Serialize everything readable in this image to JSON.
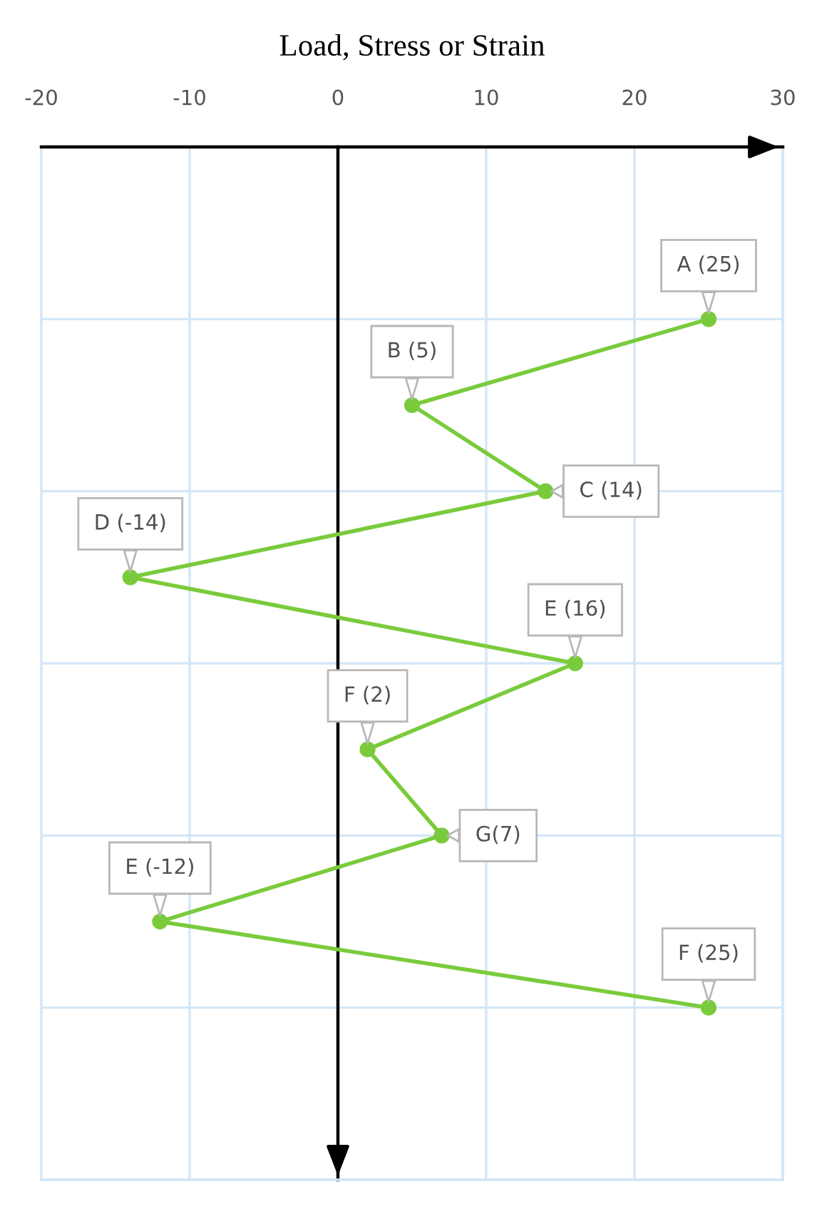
{
  "chart_data": {
    "type": "line",
    "orientation": "horizontal",
    "xlabel": "Load, Stress or Strain",
    "categories": [
      null,
      null,
      null,
      null,
      null,
      null,
      null,
      null,
      null
    ],
    "series": [
      {
        "color": "#7acb3c",
        "values": [
          25,
          5,
          14,
          -14,
          16,
          2,
          7,
          -12,
          25
        ],
        "value_labels": [
          "A (25)",
          "B (5)",
          "C (14)",
          "D (-14)",
          "E (16)",
          "F (2)",
          "G(7)",
          "E (-12)",
          "F (25)"
        ]
      }
    ],
    "xlim": [
      -20,
      30
    ],
    "xticks": [
      -20,
      -10,
      0,
      10,
      20,
      30
    ],
    "grid": true,
    "tick_labels": "x",
    "marker": "circle",
    "line_style": "solid"
  }
}
